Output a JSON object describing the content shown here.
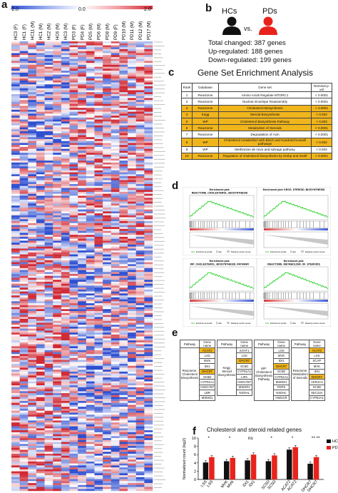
{
  "panel_labels": {
    "a": "a",
    "b": "b",
    "c": "c",
    "d": "d",
    "e": "e",
    "f": "f"
  },
  "heatmap": {
    "scale_min": "-2.0",
    "scale_mid": "0.0",
    "scale_max": "2.0",
    "columns": [
      "HC3 (F)",
      "HC1 (F)",
      "HC11 (M)",
      "HC1 (M)",
      "HC2 (M)",
      "HC6 (M)",
      "HC3 (M)",
      "PD3 (F)",
      "PD4 (F)",
      "PD5 (M)",
      "PD6 (M)",
      "PD8 (M)",
      "PD9 (F)",
      "PD10 (M)",
      "PD11 (M)",
      "PD12 (M)",
      "PD17 (M)"
    ],
    "colors": {
      "low": "#2e4fd0",
      "mid": "#ffffff",
      "high": "#d02a35"
    }
  },
  "panel_b": {
    "hc_label": "HCs",
    "pd_label": "PDs",
    "vs_label": "vs.",
    "total": "Total changed: 387 genes",
    "up": "Up-regulated: 188 genes",
    "down": "Down-regulated: 199 genes",
    "hc_color": "#111111",
    "pd_color": "#e8231c"
  },
  "panel_c": {
    "title": "Gene Set Enrichment Analysis",
    "headers": [
      "Rank",
      "Database",
      "Gene set",
      "Nominal p-val"
    ],
    "rows": [
      {
        "rank": "1",
        "db": "Reactome",
        "set": "Amino Acids Regulate MTORC1",
        "p": "< 0.0001",
        "hl": false
      },
      {
        "rank": "2",
        "db": "Reactome",
        "set": "Nuclear Envelope Reassembly",
        "p": "< 0.0001",
        "hl": false
      },
      {
        "rank": "3",
        "db": "Reactome",
        "set": "Cholesterol Biosynthesis",
        "p": "< 0.0001",
        "hl": true
      },
      {
        "rank": "4",
        "db": "Kegg",
        "set": "Steroid Biosynthesis",
        "p": "< 0.003",
        "hl": true
      },
      {
        "rank": "5",
        "db": "WP",
        "set": "Cholesterol Biosynthesis Pathway",
        "p": "< 0.003",
        "hl": true
      },
      {
        "rank": "6",
        "db": "Reactome",
        "set": "Metabolism of Steroids",
        "p": "< 0.0001",
        "hl": true
      },
      {
        "rank": "7",
        "db": "Reactome",
        "set": "Degradation of Axin",
        "p": "< 0.0001",
        "hl": false
      },
      {
        "rank": "8",
        "db": "WP",
        "set": "Cholesterol metabolism with Bloch and Kandutschrussell pathways",
        "p": "< 0.002",
        "hl": true
      },
      {
        "rank": "9",
        "db": "WP",
        "set": "Methionine de novo and salvage pathway",
        "p": "< 0.003",
        "hl": false
      },
      {
        "rank": "10",
        "db": "Reactome",
        "set": "Regulation of cholesterol biosynthesis by Srebp and Srebf",
        "p": "< 0.0001",
        "hl": true
      }
    ]
  },
  "panel_d": {
    "plots": [
      {
        "title1": "Enrichment plot:",
        "title2": "REACTOME_CHOLESTEROL_BIOSYNTHESIS"
      },
      {
        "title1": "Enrichment plot: KEGG_STEROID_BIOSYNTHESIS",
        "title2": ""
      },
      {
        "title1": "Enrichment plot:",
        "title2": "WP_CHOLESTEROL_BIOSYNTHESIS_PATHWAY"
      },
      {
        "title1": "Enrichment plot:",
        "title2": "REACTOME_METABOLISM_OF_STEROIDS"
      }
    ],
    "legend_profile": "Enrichment profile",
    "legend_hits": "Hits",
    "legend_ranking": "Ranking metric scores",
    "line_color": "#1fd11f"
  },
  "panel_e": {
    "groups": [
      {
        "pathway": "Reactome: Cholesterol Biosynthesis",
        "genes": [
          "ACAT2",
          "LSS",
          "MVK",
          "IDI1",
          "DHCR7",
          "SC5D",
          "CYP51A1",
          "HSD17B7",
          "LBR",
          "MSMO1"
        ],
        "hl": [
          "ACAT2",
          "DHCR7"
        ]
      },
      {
        "pathway": "Kegg: Steroid Biosynthesis",
        "genes": [
          "SOAT1",
          "LSS",
          "DHCR7",
          "SC5D",
          "CYP51A1",
          "LIPA",
          "HSD17B7",
          "MSMO1",
          "NSDHL"
        ],
        "hl": [
          "DHCR7"
        ]
      },
      {
        "pathway": "WP: Cholesterol Biosynthesis Pathway",
        "genes": [
          "LSS",
          "MVK",
          "IDI1",
          "DHCR7",
          "SC5D",
          "CYP51A1",
          "MSMO1",
          "FDPS",
          "NSDHL",
          "HMGCR"
        ],
        "hl": [
          "DHCR7"
        ]
      },
      {
        "pathway": "Reactome: Metabolism of Steroids",
        "genes": [
          "ACAT2",
          "LSS",
          "SCAP",
          "MVK",
          "IDI1",
          "DHCR7",
          "AKR1C3",
          "SC5D",
          "SEC24A",
          "CYP51A1"
        ],
        "hl": [
          "ACAT2",
          "DHCR7"
        ]
      }
    ],
    "header_pathway": "Pathway",
    "header_gene": "Gene name"
  },
  "panel_f": {
    "chart_data": {
      "type": "bar",
      "title": "Cholesterol and steroid related genes",
      "ylabel": "Normalized count (log2)",
      "ylim": [
        0,
        10
      ],
      "yticks": [
        "0",
        "2",
        "4",
        "6",
        "8",
        "10"
      ],
      "categories": [
        "LSS",
        "MVK",
        "IDI1",
        "SC5D",
        "ACAT2",
        "DHCR7"
      ],
      "tick_labels": [
        "LSS",
        "LSS",
        "MVK",
        "MVK",
        "IDI1",
        "IDI1",
        "SC5D",
        "SC5D",
        "ACAT2",
        "ACAT2",
        "DHCR7",
        "DHCR7"
      ],
      "series": [
        {
          "name": "HC",
          "color": "#111111",
          "values": [
            4.1,
            4.4,
            4.6,
            4.4,
            7.2,
            3.8
          ]
        },
        {
          "name": "PD",
          "color": "#e8231c",
          "values": [
            5.4,
            5.2,
            6.0,
            5.8,
            7.8,
            5.4
          ]
        }
      ],
      "significance": [
        "*",
        "*",
        "ns",
        "*",
        "*",
        "**"
      ],
      "extra_sig": "**"
    }
  }
}
